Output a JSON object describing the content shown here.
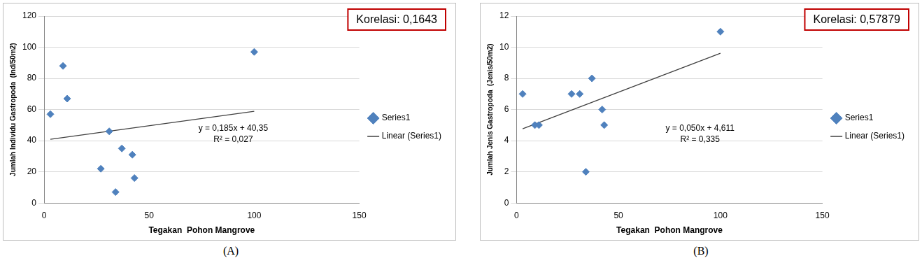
{
  "chart_data": [
    {
      "type": "scatter",
      "title": "Korelasi: 0,1643",
      "subtitle": "(A)",
      "x_label": "Tegakan  Pohon Mangrove",
      "y_label": "Jumlah Individu Gastropoda  (Ind/50m2)",
      "annotations": [
        "y = 0,185x + 40,35",
        "R² = 0,027"
      ],
      "xlim": [
        0,
        150
      ],
      "xticks": [
        0,
        50,
        100,
        150
      ],
      "ylim": [
        0,
        120
      ],
      "yticks": [
        0,
        20,
        40,
        60,
        80,
        100,
        120
      ],
      "grid": true,
      "legend": "right",
      "series": [
        {
          "name": "Series1",
          "color": "#4f81bd",
          "marker": "diamond",
          "x": [
            3,
            9,
            11,
            31,
            27,
            37,
            42,
            43,
            34,
            100
          ],
          "values": [
            57,
            88,
            67,
            46,
            22,
            35,
            31,
            16,
            7,
            97
          ]
        },
        {
          "name": "Linear (Series1)",
          "type": "line",
          "color": "#404040",
          "line_style": "solid",
          "x": [
            3,
            100
          ],
          "values": [
            40.9,
            58.85
          ]
        }
      ]
    },
    {
      "type": "scatter",
      "title": "Korelasi: 0,57879",
      "subtitle": "(B)",
      "x_label": "Tegakan  Pohon Mangrove",
      "y_label": "Jumlah Jenis Gastropoda  (Jenis/50m2)",
      "annotations": [
        "y = 0,050x + 4,611",
        "R² = 0,335"
      ],
      "xlim": [
        0,
        150
      ],
      "xticks": [
        0,
        50,
        100,
        150
      ],
      "ylim": [
        0,
        12
      ],
      "yticks": [
        0,
        2,
        4,
        6,
        8,
        10,
        12
      ],
      "grid": true,
      "legend": "right",
      "series": [
        {
          "name": "Series1",
          "color": "#4f81bd",
          "marker": "diamond",
          "x": [
            3,
            9,
            11,
            27,
            31,
            37,
            42,
            43,
            34,
            100
          ],
          "values": [
            7,
            5,
            5,
            7,
            7,
            8,
            6,
            5,
            2,
            11
          ]
        },
        {
          "name": "Linear (Series1)",
          "type": "line",
          "color": "#404040",
          "line_style": "solid",
          "x": [
            3,
            100
          ],
          "values": [
            4.76,
            9.61
          ]
        }
      ]
    }
  ]
}
